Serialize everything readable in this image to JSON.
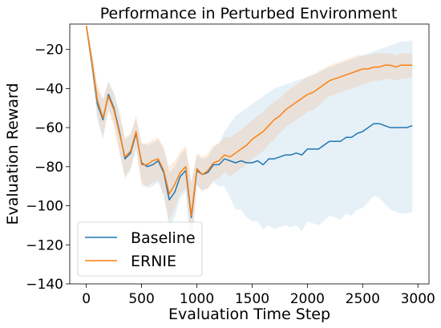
{
  "chart_data": {
    "type": "line",
    "title": "Performance in Perturbed Environment",
    "xlabel": "Evaluation Time Step",
    "ylabel": "Evaluation Reward",
    "xlim": [
      -150,
      3100
    ],
    "ylim": [
      -140,
      -7
    ],
    "xticks": [
      0,
      500,
      1000,
      1500,
      2000,
      2500,
      3000
    ],
    "xtick_labels": [
      "0",
      "500",
      "1000",
      "1500",
      "2000",
      "2500",
      "3000"
    ],
    "yticks": [
      -140,
      -120,
      -100,
      -80,
      -60,
      -40,
      -20
    ],
    "ytick_labels": [
      "−140",
      "−120",
      "−100",
      "−80",
      "−60",
      "−40",
      "−20"
    ],
    "grid": false,
    "legend_position": "lower-left",
    "x": [
      0,
      50,
      100,
      150,
      200,
      250,
      300,
      350,
      400,
      450,
      500,
      550,
      600,
      650,
      700,
      750,
      800,
      850,
      900,
      950,
      1000,
      1050,
      1100,
      1150,
      1200,
      1250,
      1300,
      1350,
      1400,
      1450,
      1500,
      1550,
      1600,
      1650,
      1700,
      1750,
      1800,
      1850,
      1900,
      1950,
      2000,
      2050,
      2100,
      2150,
      2200,
      2250,
      2300,
      2350,
      2400,
      2450,
      2500,
      2550,
      2600,
      2650,
      2700,
      2750,
      2800,
      2850,
      2900,
      2950
    ],
    "series": [
      {
        "name": "Baseline",
        "color": "#1f77b4",
        "values": [
          -8,
          -27,
          -48,
          -56,
          -43,
          -50,
          -62,
          -76,
          -73,
          -63,
          -78,
          -80,
          -79,
          -77,
          -83,
          -97,
          -93,
          -85,
          -82,
          -106,
          -82,
          -84,
          -83,
          -79,
          -79,
          -76,
          -77,
          -78,
          -77,
          -78,
          -78,
          -77,
          -79,
          -76,
          -76,
          -75,
          -74,
          -74,
          -73,
          -74,
          -71,
          -71,
          -71,
          -69,
          -67,
          -67,
          -67,
          -65,
          -65,
          -63,
          -62,
          -60,
          -58,
          -58,
          -59,
          -60,
          -60,
          -60,
          -60,
          -59
        ],
        "upper": [
          -6,
          -22,
          -40,
          -46,
          -36,
          -42,
          -52,
          -66,
          -64,
          -55,
          -68,
          -69,
          -68,
          -66,
          -71,
          -83,
          -80,
          -74,
          -71,
          -88,
          -74,
          -76,
          -75,
          -70,
          -68,
          -62,
          -58,
          -54,
          -52,
          -50,
          -48,
          -46,
          -44,
          -42,
          -40,
          -39,
          -38,
          -37,
          -36,
          -35,
          -34,
          -33,
          -32,
          -30,
          -29,
          -28,
          -27,
          -26,
          -25,
          -24,
          -23,
          -22,
          -21,
          -20,
          -19,
          -18,
          -17,
          -16,
          -16,
          -15
        ],
        "lower": [
          -10,
          -32,
          -56,
          -66,
          -50,
          -58,
          -72,
          -86,
          -82,
          -71,
          -88,
          -91,
          -90,
          -88,
          -95,
          -111,
          -106,
          -96,
          -93,
          -124,
          -90,
          -92,
          -91,
          -88,
          -90,
          -90,
          -96,
          -102,
          -102,
          -106,
          -108,
          -108,
          -112,
          -110,
          -112,
          -111,
          -110,
          -111,
          -110,
          -113,
          -108,
          -109,
          -110,
          -108,
          -105,
          -106,
          -107,
          -104,
          -105,
          -102,
          -101,
          -98,
          -95,
          -96,
          -99,
          -102,
          -103,
          -104,
          -104,
          -103
        ]
      },
      {
        "name": "ERNIE",
        "color": "#ff7f0e",
        "values": [
          -8,
          -26,
          -46,
          -55,
          -44,
          -51,
          -63,
          -75,
          -72,
          -62,
          -79,
          -79,
          -77,
          -76,
          -82,
          -94,
          -89,
          -83,
          -80,
          -105,
          -81,
          -84,
          -82,
          -78,
          -77,
          -74,
          -75,
          -73,
          -71,
          -69,
          -66,
          -64,
          -62,
          -59,
          -56,
          -54,
          -51,
          -49,
          -47,
          -45,
          -43,
          -42,
          -40,
          -38,
          -36,
          -35,
          -34,
          -33,
          -32,
          -31,
          -30,
          -30,
          -29,
          -29,
          -28,
          -28,
          -29,
          -28,
          -28,
          -28
        ],
        "upper": [
          -6,
          -21,
          -38,
          -45,
          -37,
          -43,
          -53,
          -65,
          -63,
          -54,
          -68,
          -68,
          -66,
          -65,
          -70,
          -80,
          -77,
          -72,
          -69,
          -88,
          -73,
          -75,
          -73,
          -69,
          -68,
          -65,
          -65,
          -63,
          -61,
          -59,
          -56,
          -54,
          -52,
          -49,
          -47,
          -45,
          -42,
          -40,
          -38,
          -36,
          -34,
          -33,
          -31,
          -30,
          -28,
          -27,
          -26,
          -25,
          -24,
          -23,
          -23,
          -23,
          -22,
          -22,
          -22,
          -22,
          -23,
          -22,
          -22,
          -22
        ],
        "lower": [
          -10,
          -31,
          -54,
          -65,
          -51,
          -59,
          -73,
          -85,
          -81,
          -70,
          -90,
          -90,
          -88,
          -87,
          -94,
          -108,
          -101,
          -94,
          -91,
          -122,
          -89,
          -93,
          -91,
          -87,
          -86,
          -83,
          -85,
          -83,
          -81,
          -79,
          -76,
          -74,
          -72,
          -69,
          -66,
          -63,
          -60,
          -58,
          -56,
          -54,
          -52,
          -51,
          -49,
          -46,
          -44,
          -43,
          -42,
          -41,
          -40,
          -39,
          -38,
          -37,
          -36,
          -36,
          -35,
          -35,
          -36,
          -35,
          -35,
          -34
        ]
      }
    ]
  }
}
